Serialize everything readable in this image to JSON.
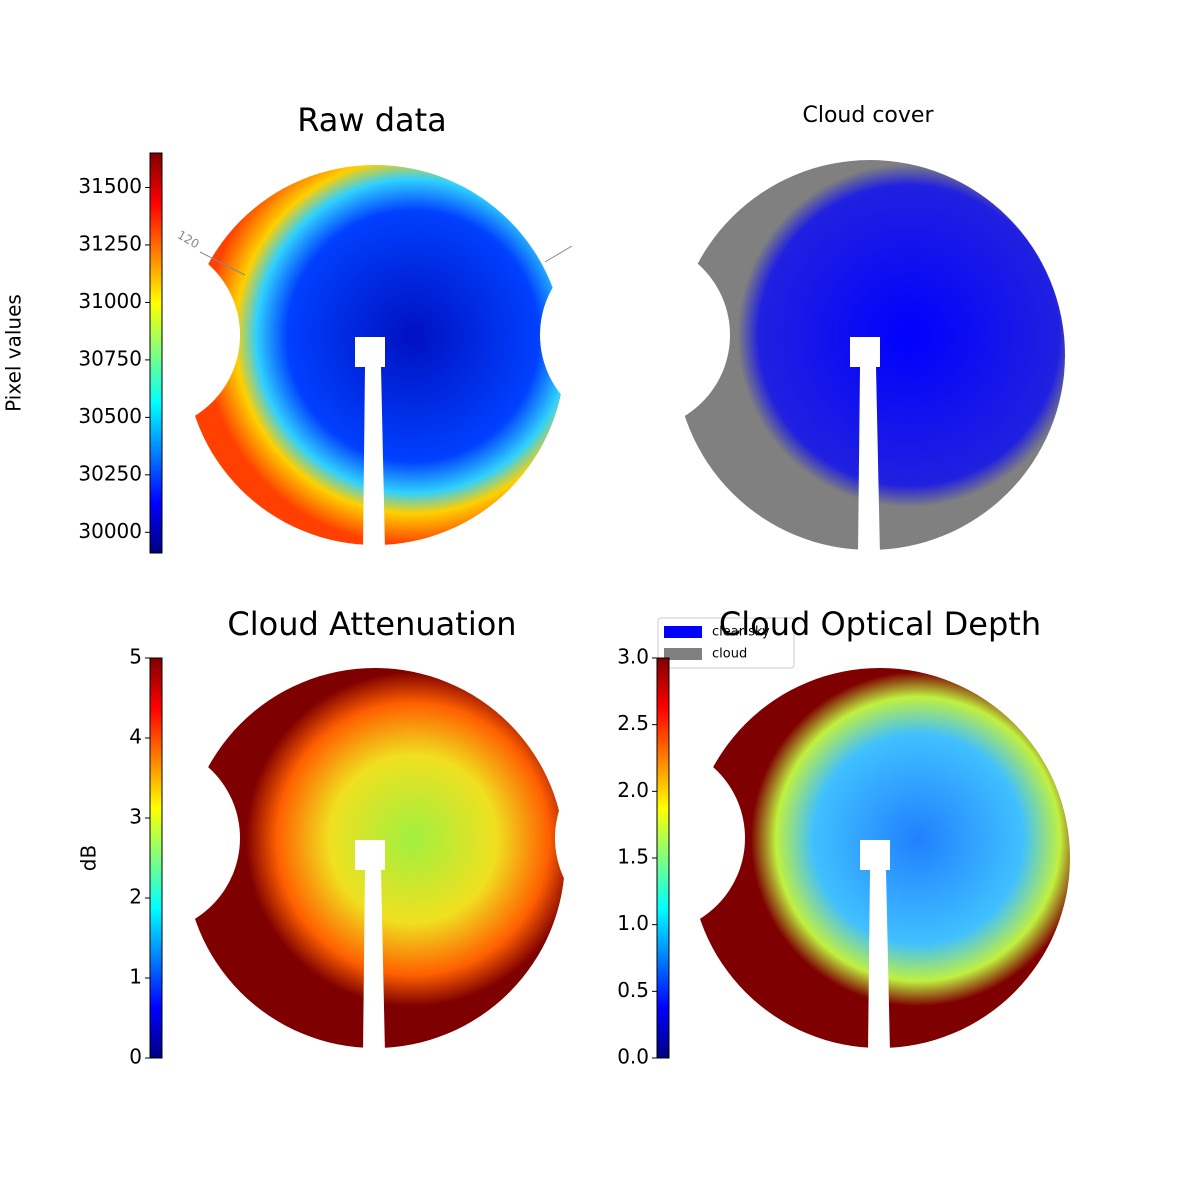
{
  "chart_data": [
    {
      "type": "image",
      "title": "Raw data",
      "ylabel": "Pixel values",
      "colormap": "jet",
      "annotation": "120",
      "ylim": [
        29910,
        31650
      ],
      "yticks": [
        30000,
        30250,
        30500,
        30750,
        31000,
        31250,
        31500
      ]
    },
    {
      "type": "image",
      "title": "Cloud cover",
      "legend": [
        {
          "name": "clear sky",
          "color": "#0000ff"
        },
        {
          "name": "cloud",
          "color": "#808080"
        }
      ]
    },
    {
      "type": "image",
      "title": "Cloud Attenuation",
      "ylabel": "dB",
      "colormap": "jet",
      "ylim": [
        0,
        5
      ],
      "yticks": [
        0,
        1,
        2,
        3,
        4,
        5
      ]
    },
    {
      "type": "image",
      "title": "Cloud Optical Depth",
      "colormap": "jet",
      "ylim": [
        0,
        3
      ],
      "yticks": [
        {
          "value": 0,
          "label": "0.0"
        },
        0.5,
        {
          "value": 1,
          "label": "1.0"
        },
        1.5,
        {
          "value": 2,
          "label": "2.0"
        },
        2.5,
        {
          "value": 3,
          "label": "3.0"
        }
      ]
    }
  ]
}
